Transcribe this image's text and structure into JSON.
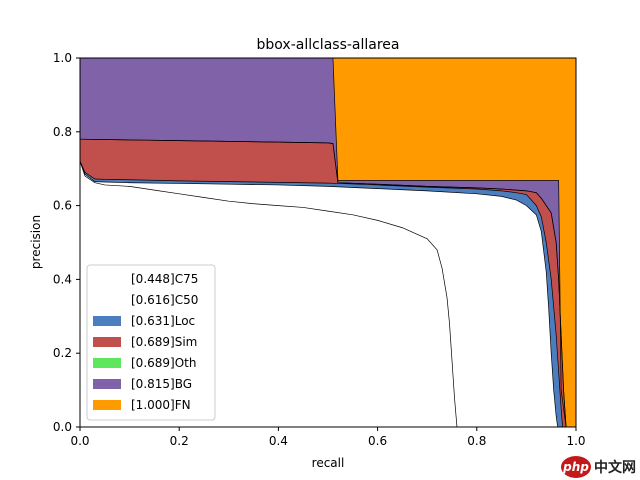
{
  "chart_data": {
    "type": "area",
    "title": "bbox-allclass-allarea",
    "xlabel": "recall",
    "ylabel": "precision",
    "xlim": [
      0,
      1
    ],
    "ylim": [
      0,
      1
    ],
    "xticks": [
      0.0,
      0.2,
      0.4,
      0.6,
      0.8,
      1.0
    ],
    "yticks": [
      0.0,
      0.2,
      0.4,
      0.6,
      0.8,
      1.0
    ],
    "xtick_labels": [
      "0.0",
      "0.2",
      "0.4",
      "0.6",
      "0.8",
      "1.0"
    ],
    "ytick_labels": [
      "0.0",
      "0.2",
      "0.4",
      "0.6",
      "0.8",
      "1.0"
    ],
    "legend_position": "lower-left",
    "series": [
      {
        "name": "[0.448]C75",
        "color": "#ffffff",
        "x": [
          0,
          0.01,
          0.03,
          0.05,
          0.1,
          0.15,
          0.2,
          0.25,
          0.3,
          0.35,
          0.4,
          0.45,
          0.5,
          0.55,
          0.6,
          0.65,
          0.7,
          0.72,
          0.73,
          0.74,
          0.745,
          0.75,
          0.755,
          0.76
        ],
        "y": [
          0.72,
          0.68,
          0.662,
          0.656,
          0.652,
          0.642,
          0.632,
          0.622,
          0.612,
          0.605,
          0.6,
          0.595,
          0.585,
          0.575,
          0.56,
          0.54,
          0.51,
          0.48,
          0.43,
          0.35,
          0.28,
          0.18,
          0.08,
          0
        ]
      },
      {
        "name": "[0.616]C50",
        "color": "#ffffff",
        "x": [
          0,
          0.01,
          0.03,
          0.05,
          0.1,
          0.2,
          0.3,
          0.4,
          0.5,
          0.6,
          0.7,
          0.8,
          0.85,
          0.88,
          0.9,
          0.92,
          0.93,
          0.94,
          0.945,
          0.95,
          0.955,
          0.96,
          0.963
        ],
        "y": [
          0.72,
          0.685,
          0.665,
          0.664,
          0.662,
          0.66,
          0.658,
          0.656,
          0.652,
          0.646,
          0.64,
          0.632,
          0.625,
          0.615,
          0.6,
          0.575,
          0.53,
          0.42,
          0.32,
          0.2,
          0.1,
          0.03,
          0
        ]
      },
      {
        "name": "[0.631]Loc",
        "color": "#4c7dbf",
        "x": [
          0,
          0.01,
          0.03,
          0.05,
          0.1,
          0.2,
          0.3,
          0.4,
          0.5,
          0.52,
          0.6,
          0.7,
          0.8,
          0.85,
          0.88,
          0.9,
          0.92,
          0.93,
          0.94,
          0.95,
          0.96,
          0.97,
          0.973
        ],
        "y": [
          0.72,
          0.69,
          0.672,
          0.671,
          0.67,
          0.667,
          0.665,
          0.663,
          0.661,
          0.66,
          0.656,
          0.65,
          0.645,
          0.64,
          0.635,
          0.63,
          0.6,
          0.57,
          0.5,
          0.4,
          0.25,
          0.05,
          0
        ]
      },
      {
        "name": "[0.689]Sim",
        "color": "#c14f4b",
        "x": [
          0,
          0.1,
          0.2,
          0.3,
          0.4,
          0.5,
          0.51,
          0.52,
          0.6,
          0.7,
          0.8,
          0.85,
          0.9,
          0.92,
          0.93,
          0.94,
          0.95,
          0.96,
          0.965,
          0.97,
          0.975,
          0.98
        ],
        "y": [
          0.78,
          0.778,
          0.776,
          0.774,
          0.772,
          0.77,
          0.768,
          0.662,
          0.658,
          0.652,
          0.648,
          0.645,
          0.64,
          0.635,
          0.62,
          0.6,
          0.58,
          0.5,
          0.4,
          0.25,
          0.1,
          0
        ]
      },
      {
        "name": "[0.689]Oth",
        "color": "#5fe65f",
        "x": [
          0,
          0.1,
          0.2,
          0.3,
          0.4,
          0.5,
          0.51,
          0.52,
          0.6,
          0.7,
          0.8,
          0.85,
          0.9,
          0.92,
          0.93,
          0.94,
          0.95,
          0.96,
          0.965,
          0.97,
          0.975,
          0.98
        ],
        "y": [
          0.78,
          0.778,
          0.776,
          0.774,
          0.772,
          0.77,
          0.768,
          0.662,
          0.658,
          0.652,
          0.648,
          0.645,
          0.64,
          0.635,
          0.62,
          0.6,
          0.58,
          0.5,
          0.4,
          0.25,
          0.1,
          0
        ]
      },
      {
        "name": "[0.815]BG",
        "color": "#7f62a8",
        "x": [
          0,
          0.51,
          0.52,
          0.965,
          0.97,
          0.98
        ],
        "y": [
          1,
          1,
          0.668,
          0.668,
          0.1,
          0
        ]
      },
      {
        "name": "[1.000]FN",
        "color": "#ff9a00",
        "x": [
          0,
          1
        ],
        "y": [
          1,
          1
        ]
      }
    ]
  },
  "watermark": {
    "badge": "php",
    "text": "中文网"
  }
}
